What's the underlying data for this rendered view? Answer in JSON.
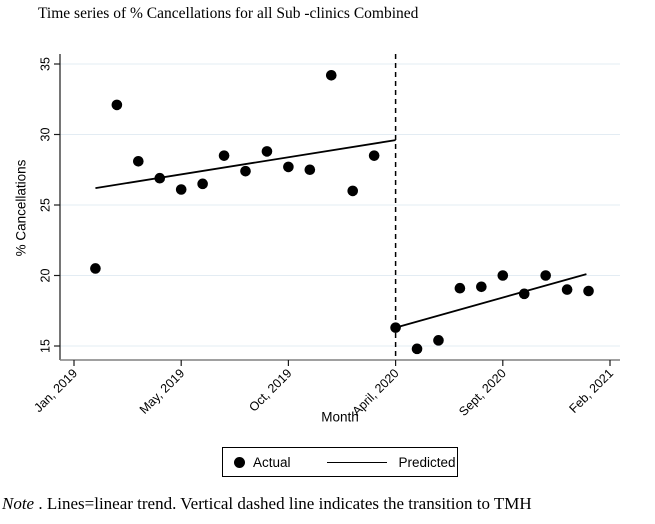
{
  "figure": {
    "title": "Time series of % Cancellations for all Sub -clinics Combined",
    "note_label": "Note",
    "note_rest": " . Lines=linear trend. Vertical dashed line indicates the transition to TMH"
  },
  "legend": {
    "items": [
      {
        "marker": "circle",
        "label": "Actual"
      },
      {
        "marker": "line",
        "label": "Predicted"
      }
    ]
  },
  "chart_data": {
    "type": "scatter",
    "title": "Time series of % Cancellations for all Sub -clinics Combined",
    "xlabel": "Month",
    "ylabel": "% Cancellations",
    "ylim": [
      14.0,
      35.6
    ],
    "grid": "horizontal",
    "legend_position": "bottom-center",
    "y_ticks": [
      15,
      20,
      25,
      30,
      35
    ],
    "x_ticks": [
      {
        "slot": 0,
        "label": "Jan, 2019"
      },
      {
        "slot": 5,
        "label": "May, 2019"
      },
      {
        "slot": 10,
        "label": "Oct, 2019"
      },
      {
        "slot": 15,
        "label": "April, 2020"
      },
      {
        "slot": 20,
        "label": "Sept, 2020"
      },
      {
        "slot": 25,
        "label": "Feb, 2021"
      }
    ],
    "vline": {
      "slot": 15,
      "style": "dashed",
      "meaning": "transition to TMH"
    },
    "series": [
      {
        "name": "Actual",
        "kind": "scatter",
        "points": [
          {
            "slot": 1,
            "month": "Jan 2019",
            "value": 20.5
          },
          {
            "slot": 2,
            "month": "Feb 2019",
            "value": 32.1
          },
          {
            "slot": 3,
            "month": "Mar 2019",
            "value": 28.1
          },
          {
            "slot": 4,
            "month": "Apr 2019",
            "value": 26.9
          },
          {
            "slot": 5,
            "month": "May 2019",
            "value": 26.1
          },
          {
            "slot": 6,
            "month": "Jun 2019",
            "value": 26.5
          },
          {
            "slot": 7,
            "month": "Jul 2019",
            "value": 28.5
          },
          {
            "slot": 8,
            "month": "Aug 2019",
            "value": 27.4
          },
          {
            "slot": 9,
            "month": "Sep 2019",
            "value": 28.8
          },
          {
            "slot": 10,
            "month": "Oct 2019",
            "value": 27.7
          },
          {
            "slot": 11,
            "month": "Nov 2019",
            "value": 27.5
          },
          {
            "slot": 12,
            "month": "Dec 2019",
            "value": 34.2
          },
          {
            "slot": 13,
            "month": "Jan 2020",
            "value": 26.0
          },
          {
            "slot": 14,
            "month": "Feb 2020",
            "value": 28.5
          },
          {
            "slot": 15,
            "month": "Apr 2020",
            "value": 16.3
          },
          {
            "slot": 16,
            "month": "May 2020",
            "value": 14.8
          },
          {
            "slot": 17,
            "month": "Jun 2020",
            "value": 15.4
          },
          {
            "slot": 18,
            "month": "Jul 2020",
            "value": 19.1
          },
          {
            "slot": 19,
            "month": "Aug 2020",
            "value": 19.2
          },
          {
            "slot": 20,
            "month": "Sep 2020",
            "value": 20.0
          },
          {
            "slot": 21,
            "month": "Oct 2020",
            "value": 18.7
          },
          {
            "slot": 22,
            "month": "Nov 2020",
            "value": 20.0
          },
          {
            "slot": 23,
            "month": "Dec 2020",
            "value": 19.0
          },
          {
            "slot": 24,
            "month": "Jan 2021",
            "value": 18.9
          }
        ]
      },
      {
        "name": "Predicted",
        "kind": "line",
        "segments": [
          {
            "x1": 1,
            "y1": 26.2,
            "x2": 15,
            "y2": 29.6
          },
          {
            "x1": 15,
            "y1": 16.3,
            "x2": 23.9,
            "y2": 20.1
          }
        ]
      }
    ],
    "colors": {
      "marker": "#000000",
      "trend": "#000000",
      "vline": "#000000",
      "gridline": "#e3ecf3",
      "axis_y": "#1a1a1a",
      "axis_x": "#808080"
    }
  }
}
